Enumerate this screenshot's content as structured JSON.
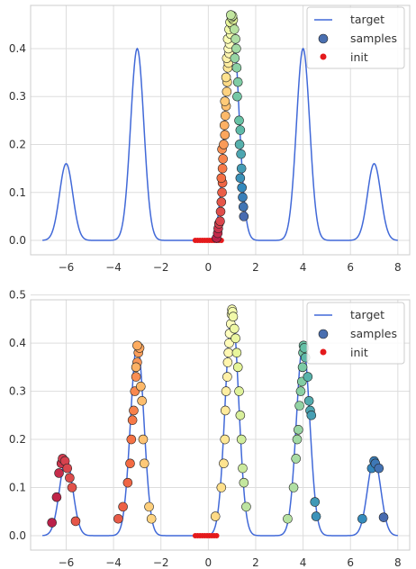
{
  "colors": {
    "target_line": "#4169d8",
    "init_marker": "#e41a1c",
    "axes_background": "#ffffff",
    "grid": "#dddddd",
    "spine": "#cccccc",
    "legend_samples_marker": "#4a6fb0",
    "sample_colormap": "RdYlGn-Spectral"
  },
  "chart_data": [
    {
      "type": "line+scatter",
      "xlim": [
        -7.5,
        8.5
      ],
      "ylim": [
        -0.03,
        0.49
      ],
      "x_ticks": [
        -6,
        -4,
        -2,
        0,
        2,
        4,
        6,
        8
      ],
      "y_ticks": [
        0.0,
        0.1,
        0.2,
        0.3,
        0.4
      ],
      "x_tick_labels": [
        "−6",
        "−4",
        "−2",
        "0",
        "2",
        "4",
        "6",
        "8"
      ],
      "y_tick_labels": [
        "0.0",
        "0.1",
        "0.2",
        "0.3",
        "0.4"
      ],
      "grid": true,
      "legend": {
        "position": "top-right",
        "entries": [
          "target",
          "samples",
          "init"
        ]
      },
      "target_peaks": [
        {
          "mu": -6,
          "height": 0.16,
          "sigma": 0.28
        },
        {
          "mu": -3,
          "height": 0.4,
          "sigma": 0.28
        },
        {
          "mu": 1,
          "height": 0.47,
          "sigma": 0.28
        },
        {
          "mu": 4,
          "height": 0.4,
          "sigma": 0.28
        },
        {
          "mu": 7,
          "height": 0.16,
          "sigma": 0.28
        }
      ],
      "init_x": [
        -0.55,
        -0.45,
        -0.35,
        -0.25,
        -0.15,
        -0.05,
        0.05,
        0.15,
        0.25,
        0.35,
        0.45,
        0.55
      ],
      "samples": [
        [
          0.35,
          0.005
        ],
        [
          0.4,
          0.015
        ],
        [
          0.42,
          0.025
        ],
        [
          0.45,
          0.035
        ],
        [
          0.5,
          0.04
        ],
        [
          0.52,
          0.06
        ],
        [
          0.55,
          0.08
        ],
        [
          0.58,
          0.1
        ],
        [
          0.6,
          0.12
        ],
        [
          0.55,
          0.13
        ],
        [
          0.6,
          0.15
        ],
        [
          0.62,
          0.17
        ],
        [
          0.58,
          0.19
        ],
        [
          0.65,
          0.2
        ],
        [
          0.7,
          0.22
        ],
        [
          0.68,
          0.24
        ],
        [
          0.72,
          0.26
        ],
        [
          0.75,
          0.28
        ],
        [
          0.7,
          0.29
        ],
        [
          0.78,
          0.31
        ],
        [
          0.8,
          0.33
        ],
        [
          0.75,
          0.34
        ],
        [
          0.82,
          0.36
        ],
        [
          0.85,
          0.37
        ],
        [
          0.78,
          0.38
        ],
        [
          0.88,
          0.39
        ],
        [
          0.85,
          0.4
        ],
        [
          0.9,
          0.41
        ],
        [
          0.82,
          0.42
        ],
        [
          0.95,
          0.43
        ],
        [
          0.88,
          0.44
        ],
        [
          1.0,
          0.45
        ],
        [
          0.92,
          0.455
        ],
        [
          1.05,
          0.46
        ],
        [
          0.98,
          0.465
        ],
        [
          1.02,
          0.468
        ],
        [
          0.95,
          0.47
        ],
        [
          1.1,
          0.44
        ],
        [
          1.15,
          0.42
        ],
        [
          1.18,
          0.4
        ],
        [
          1.12,
          0.38
        ],
        [
          1.2,
          0.36
        ],
        [
          1.25,
          0.33
        ],
        [
          1.22,
          0.3
        ],
        [
          1.3,
          0.25
        ],
        [
          1.35,
          0.23
        ],
        [
          1.32,
          0.2
        ],
        [
          1.38,
          0.18
        ],
        [
          1.4,
          0.15
        ],
        [
          1.35,
          0.13
        ],
        [
          1.42,
          0.11
        ],
        [
          1.45,
          0.09
        ],
        [
          1.48,
          0.07
        ],
        [
          1.5,
          0.05
        ]
      ]
    },
    {
      "type": "line+scatter",
      "xlim": [
        -7.5,
        8.5
      ],
      "ylim": [
        -0.03,
        0.49
      ],
      "x_ticks": [
        -6,
        -4,
        -2,
        0,
        2,
        4,
        6,
        8
      ],
      "y_ticks": [
        0.0,
        0.1,
        0.2,
        0.3,
        0.4,
        0.5
      ],
      "x_tick_labels": [
        "−6",
        "−4",
        "−2",
        "0",
        "2",
        "4",
        "6",
        "8"
      ],
      "y_tick_labels": [
        "0.0",
        "0.1",
        "0.2",
        "0.3",
        "0.4",
        "0.5"
      ],
      "grid": true,
      "legend": {
        "position": "top-right",
        "entries": [
          "target",
          "samples",
          "init"
        ]
      },
      "target_peaks": [
        {
          "mu": -6,
          "height": 0.16,
          "sigma": 0.28
        },
        {
          "mu": -3,
          "height": 0.4,
          "sigma": 0.28
        },
        {
          "mu": 1,
          "height": 0.47,
          "sigma": 0.28
        },
        {
          "mu": 4,
          "height": 0.4,
          "sigma": 0.28
        },
        {
          "mu": 7,
          "height": 0.16,
          "sigma": 0.28
        }
      ],
      "init_x": [
        -0.55,
        -0.45,
        -0.35,
        -0.25,
        -0.15,
        -0.05,
        0.05,
        0.15,
        0.25,
        0.35
      ],
      "samples": [
        [
          -6.6,
          0.027
        ],
        [
          -6.4,
          0.08
        ],
        [
          -6.3,
          0.13
        ],
        [
          -6.2,
          0.15
        ],
        [
          -6.15,
          0.16
        ],
        [
          -6.05,
          0.155
        ],
        [
          -5.95,
          0.14
        ],
        [
          -5.85,
          0.12
        ],
        [
          -5.75,
          0.1
        ],
        [
          -5.6,
          0.03
        ],
        [
          -3.8,
          0.035
        ],
        [
          -3.6,
          0.06
        ],
        [
          -3.4,
          0.11
        ],
        [
          -3.3,
          0.15
        ],
        [
          -3.25,
          0.2
        ],
        [
          -3.2,
          0.24
        ],
        [
          -3.15,
          0.26
        ],
        [
          -3.1,
          0.3
        ],
        [
          -3.05,
          0.33
        ],
        [
          -3.0,
          0.36
        ],
        [
          -2.95,
          0.38
        ],
        [
          -2.9,
          0.39
        ],
        [
          -3.0,
          0.395
        ],
        [
          -3.05,
          0.35
        ],
        [
          -2.85,
          0.31
        ],
        [
          -2.8,
          0.28
        ],
        [
          -2.75,
          0.2
        ],
        [
          -2.7,
          0.15
        ],
        [
          -2.5,
          0.06
        ],
        [
          -2.4,
          0.035
        ],
        [
          0.3,
          0.04
        ],
        [
          0.55,
          0.1
        ],
        [
          0.65,
          0.15
        ],
        [
          0.7,
          0.2
        ],
        [
          0.72,
          0.26
        ],
        [
          0.75,
          0.3
        ],
        [
          0.8,
          0.33
        ],
        [
          0.82,
          0.36
        ],
        [
          0.85,
          0.38
        ],
        [
          0.88,
          0.4
        ],
        [
          0.9,
          0.42
        ],
        [
          0.95,
          0.44
        ],
        [
          0.98,
          0.46
        ],
        [
          1.0,
          0.47
        ],
        [
          1.02,
          0.465
        ],
        [
          1.05,
          0.455
        ],
        [
          1.1,
          0.43
        ],
        [
          1.15,
          0.41
        ],
        [
          1.2,
          0.38
        ],
        [
          1.25,
          0.35
        ],
        [
          1.3,
          0.3
        ],
        [
          1.35,
          0.25
        ],
        [
          1.4,
          0.2
        ],
        [
          1.45,
          0.14
        ],
        [
          1.5,
          0.11
        ],
        [
          1.6,
          0.06
        ],
        [
          3.35,
          0.035
        ],
        [
          3.6,
          0.1
        ],
        [
          3.7,
          0.16
        ],
        [
          3.75,
          0.2
        ],
        [
          3.8,
          0.22
        ],
        [
          3.85,
          0.27
        ],
        [
          3.9,
          0.3
        ],
        [
          3.95,
          0.32
        ],
        [
          3.98,
          0.35
        ],
        [
          4.0,
          0.38
        ],
        [
          4.02,
          0.395
        ],
        [
          4.05,
          0.39
        ],
        [
          4.1,
          0.37
        ],
        [
          4.2,
          0.33
        ],
        [
          4.25,
          0.28
        ],
        [
          4.3,
          0.26
        ],
        [
          4.35,
          0.25
        ],
        [
          4.5,
          0.07
        ],
        [
          4.55,
          0.04
        ],
        [
          6.5,
          0.035
        ],
        [
          6.9,
          0.14
        ],
        [
          7.0,
          0.155
        ],
        [
          7.05,
          0.15
        ],
        [
          7.2,
          0.14
        ],
        [
          7.4,
          0.038
        ]
      ]
    }
  ],
  "legend": {
    "target_label": "target",
    "samples_label": "samples",
    "init_label": "init"
  }
}
